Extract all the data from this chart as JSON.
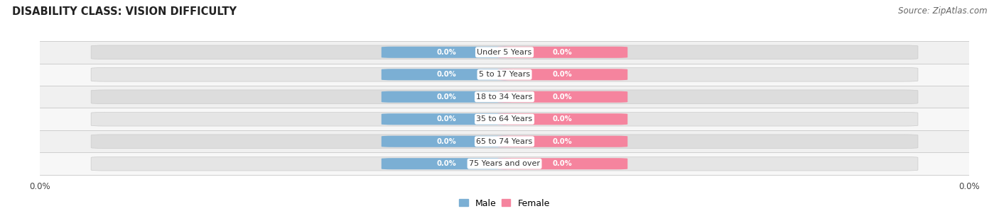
{
  "title": "DISABILITY CLASS: VISION DIFFICULTY",
  "source": "Source: ZipAtlas.com",
  "categories": [
    "Under 5 Years",
    "5 to 17 Years",
    "18 to 34 Years",
    "35 to 64 Years",
    "65 to 74 Years",
    "75 Years and over"
  ],
  "male_values": [
    0.0,
    0.0,
    0.0,
    0.0,
    0.0,
    0.0
  ],
  "female_values": [
    0.0,
    0.0,
    0.0,
    0.0,
    0.0,
    0.0
  ],
  "male_color": "#7bafd4",
  "female_color": "#f5849e",
  "title_color": "#222222",
  "title_fontsize": 10.5,
  "tick_fontsize": 8.5,
  "source_fontsize": 8.5,
  "source_color": "#666666",
  "legend_male_color": "#7bafd4",
  "legend_female_color": "#f5849e",
  "bar_bg_color_even": "#efefef",
  "bar_bg_color_odd": "#e8e8e8",
  "row_bg_even": "#f7f7f7",
  "row_bg_odd": "#f0f0f0",
  "pill_inner_color_even": "#e5e5e5",
  "pill_inner_color_odd": "#dddddd",
  "left_label": "0.0%",
  "right_label": "0.0%"
}
